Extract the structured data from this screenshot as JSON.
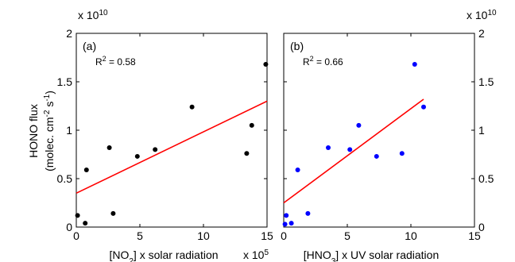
{
  "y_axis_label_line1": "HONO flux",
  "y_axis_label_line2": {
    "pre": "(molec. cm",
    "sup1": "-2",
    "mid": " s",
    "sup2": "-1",
    "post": ")"
  },
  "chart_data": [
    {
      "type": "scatter",
      "panel_label": "(a)",
      "r2": {
        "pre": "R",
        "sup": "2",
        "post": " = 0.58"
      },
      "xlabel": {
        "pre": "[NO",
        "sub": "2",
        "post": "] x solar radiation"
      },
      "x_exponent": {
        "base": "x 10",
        "exp": "5"
      },
      "y_exponent": {
        "base": "x 10",
        "exp": "10"
      },
      "y_exponent_side": "left",
      "xlim": [
        0,
        15
      ],
      "ylim": [
        0,
        2
      ],
      "xticks": [
        0,
        5,
        10,
        15
      ],
      "yticks": [
        0,
        0.5,
        1,
        1.5,
        2
      ],
      "ytick_labels": [
        "0",
        "0.5",
        "1",
        "1.5",
        "2"
      ],
      "point_color": "#000000",
      "line_color": "#ff0000",
      "points": [
        [
          0.1,
          0.12
        ],
        [
          0.7,
          0.04
        ],
        [
          0.8,
          0.59
        ],
        [
          2.6,
          0.82
        ],
        [
          2.9,
          0.14
        ],
        [
          4.8,
          0.73
        ],
        [
          6.2,
          0.8
        ],
        [
          9.1,
          1.24
        ],
        [
          13.4,
          0.76
        ],
        [
          13.8,
          1.05
        ],
        [
          14.9,
          1.68
        ]
      ],
      "fit_line": [
        [
          0,
          0.35
        ],
        [
          15,
          1.3
        ]
      ]
    },
    {
      "type": "scatter",
      "panel_label": "(b)",
      "r2": {
        "pre": "R",
        "sup": "2",
        "post": " = 0.66"
      },
      "xlabel": {
        "pre": "[HNO",
        "sub": "3",
        "post": "] x UV solar radiation"
      },
      "x_exponent": null,
      "y_exponent": {
        "base": "x 10",
        "exp": "10"
      },
      "y_exponent_side": "right",
      "xlim": [
        0,
        15
      ],
      "ylim": [
        0,
        2
      ],
      "xticks": [
        0,
        5,
        10,
        15
      ],
      "yticks": [
        0,
        0.5,
        1,
        1.5,
        2
      ],
      "ytick_labels": [
        "0",
        "0.5",
        "1",
        "1.5",
        "2"
      ],
      "point_color": "#0000ff",
      "line_color": "#ff0000",
      "points": [
        [
          0.1,
          0.03
        ],
        [
          0.2,
          0.12
        ],
        [
          0.6,
          0.04
        ],
        [
          1.1,
          0.59
        ],
        [
          1.9,
          0.14
        ],
        [
          3.5,
          0.82
        ],
        [
          5.2,
          0.8
        ],
        [
          5.9,
          1.05
        ],
        [
          7.3,
          0.73
        ],
        [
          9.3,
          0.76
        ],
        [
          10.3,
          1.68
        ],
        [
          11.0,
          1.24
        ]
      ],
      "fit_line": [
        [
          0,
          0.25
        ],
        [
          11.0,
          1.32
        ]
      ]
    }
  ]
}
